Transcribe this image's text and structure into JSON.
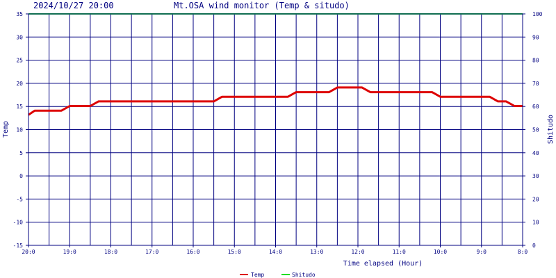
{
  "header": {
    "timestamp": "2024/10/27 20:00",
    "title": "Mt.OSA wind monitor (Temp & situdo)"
  },
  "chart_data": {
    "type": "line",
    "title": "Mt.OSA wind monitor (Temp & situdo)",
    "xlabel": "Time elapsed (Hour)",
    "ylabel_left": "Temp",
    "ylabel_right": "Shitudo",
    "x_range_hours_elapsed": [
      0,
      12
    ],
    "ylim_left": [
      -15,
      35
    ],
    "ylim_right": [
      0,
      100
    ],
    "y_ticks_left": [
      -15,
      -10,
      -5,
      0,
      5,
      10,
      15,
      20,
      25,
      30,
      35
    ],
    "y_ticks_right": [
      0,
      10,
      20,
      30,
      40,
      50,
      60,
      70,
      80,
      90,
      100
    ],
    "x_tick_labels": [
      "20:0",
      "19:0",
      "18:0",
      "17:0",
      "16:0",
      "15:0",
      "14:0",
      "13:0",
      "12:0",
      "11:0",
      "10:0",
      "9:0",
      "8:0"
    ],
    "grid": true,
    "legend_position": "bottom-center",
    "series": [
      {
        "name": "Temp",
        "axis": "left",
        "color": "#dd0000",
        "points": [
          [
            0.0,
            13.2
          ],
          [
            0.15,
            14.1
          ],
          [
            0.8,
            14.1
          ],
          [
            1.0,
            15.1
          ],
          [
            1.5,
            15.1
          ],
          [
            1.7,
            16.1
          ],
          [
            4.5,
            16.1
          ],
          [
            4.7,
            17.1
          ],
          [
            6.3,
            17.1
          ],
          [
            6.5,
            18.1
          ],
          [
            7.3,
            18.1
          ],
          [
            7.5,
            19.1
          ],
          [
            8.1,
            19.1
          ],
          [
            8.3,
            18.1
          ],
          [
            9.8,
            18.1
          ],
          [
            10.0,
            17.1
          ],
          [
            11.2,
            17.1
          ],
          [
            11.4,
            16.1
          ],
          [
            11.6,
            16.1
          ],
          [
            11.8,
            15.1
          ],
          [
            12.0,
            15.1
          ]
        ]
      },
      {
        "name": "Shitudo",
        "axis": "right",
        "color": "#22dd22",
        "points": [
          [
            0.0,
            100
          ],
          [
            12.0,
            100
          ]
        ]
      }
    ]
  }
}
